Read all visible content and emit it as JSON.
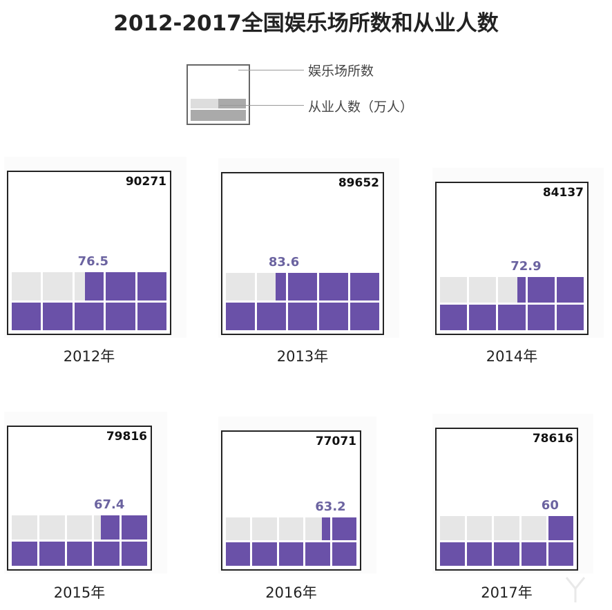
{
  "title": "2012-2017全国娱乐场所数和从业人数",
  "legend": {
    "venues_label": "娱乐场所数",
    "employees_label": "从业人数（万人）"
  },
  "colors": {
    "filled": "#6a51a8",
    "empty": "#e6e6e6",
    "value_text": "#6b63a0"
  },
  "chart_data": {
    "type": "waffle",
    "title": "2012-2017全国娱乐场所数和从业人数",
    "categories": [
      "2012年",
      "2013年",
      "2014年",
      "2015年",
      "2016年",
      "2017年"
    ],
    "series": [
      {
        "name": "娱乐场所数",
        "values": [
          90271,
          89652,
          84137,
          79816,
          77071,
          78616
        ]
      },
      {
        "name": "从业人数（万人）",
        "values": [
          76.5,
          83.6,
          72.9,
          67.4,
          63.2,
          60
        ]
      }
    ],
    "labels": {
      "venues": [
        "90271",
        "89652",
        "84137",
        "79816",
        "77071",
        "78616"
      ],
      "employees": [
        "76.5",
        "83.6",
        "72.9",
        "67.4",
        "63.2",
        "60"
      ]
    },
    "cell_unit": 10,
    "cells_total": 10
  }
}
